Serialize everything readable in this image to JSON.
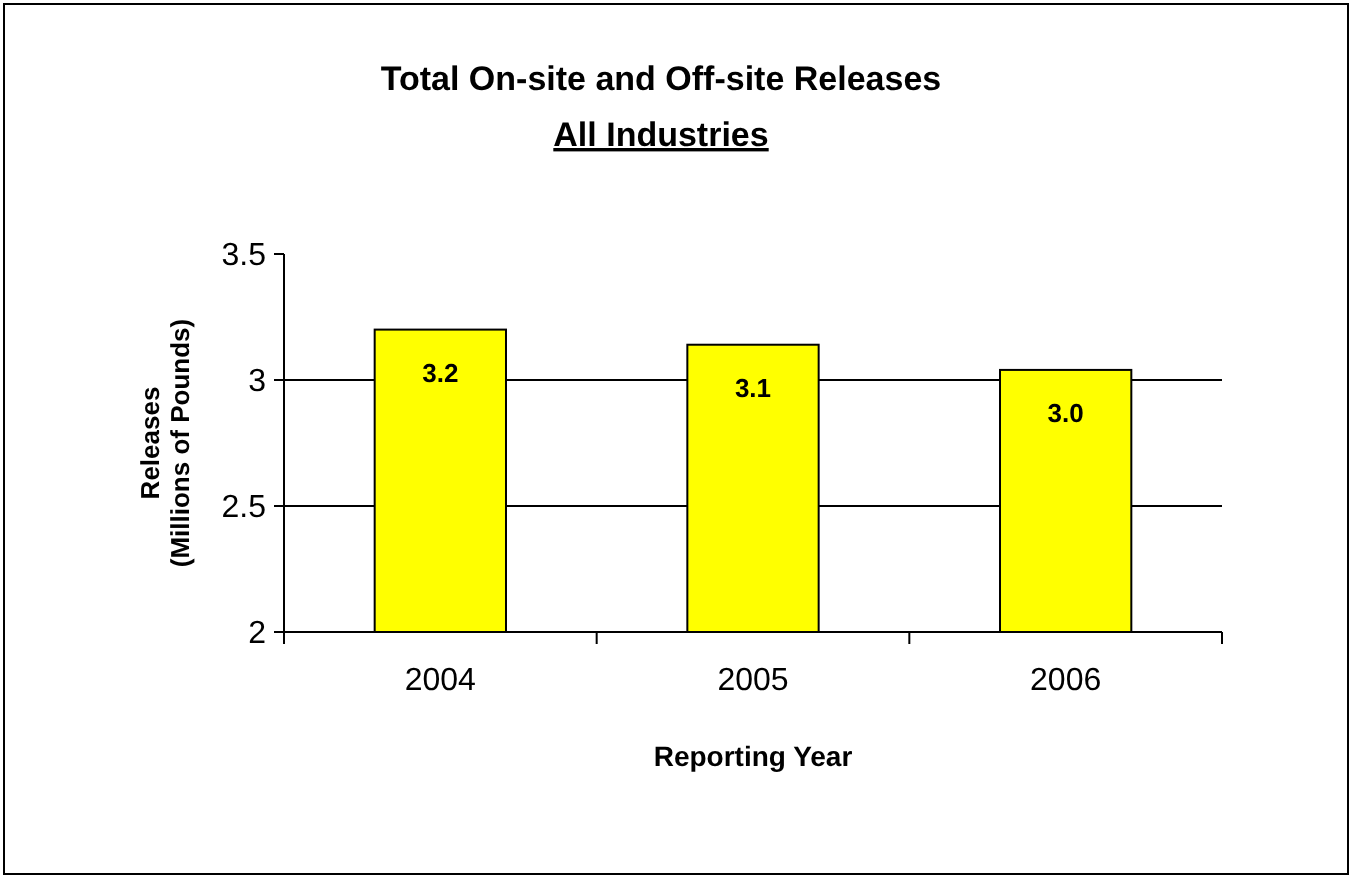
{
  "chart_data": {
    "type": "bar",
    "title": "Total On-site and Off-site Releases",
    "subtitle": "All Industries",
    "xlabel": "Reporting Year",
    "ylabel": "Releases\n(Millions of Pounds)",
    "categories": [
      "2004",
      "2005",
      "2006"
    ],
    "values": [
      3.2,
      3.14,
      3.04
    ],
    "value_labels": [
      "3.2",
      "3.1",
      "3.0"
    ],
    "color": "#ffff00",
    "ylim": [
      2,
      3.5
    ],
    "yticks": [
      2,
      2.5,
      3,
      3.5
    ],
    "grid": "y"
  }
}
